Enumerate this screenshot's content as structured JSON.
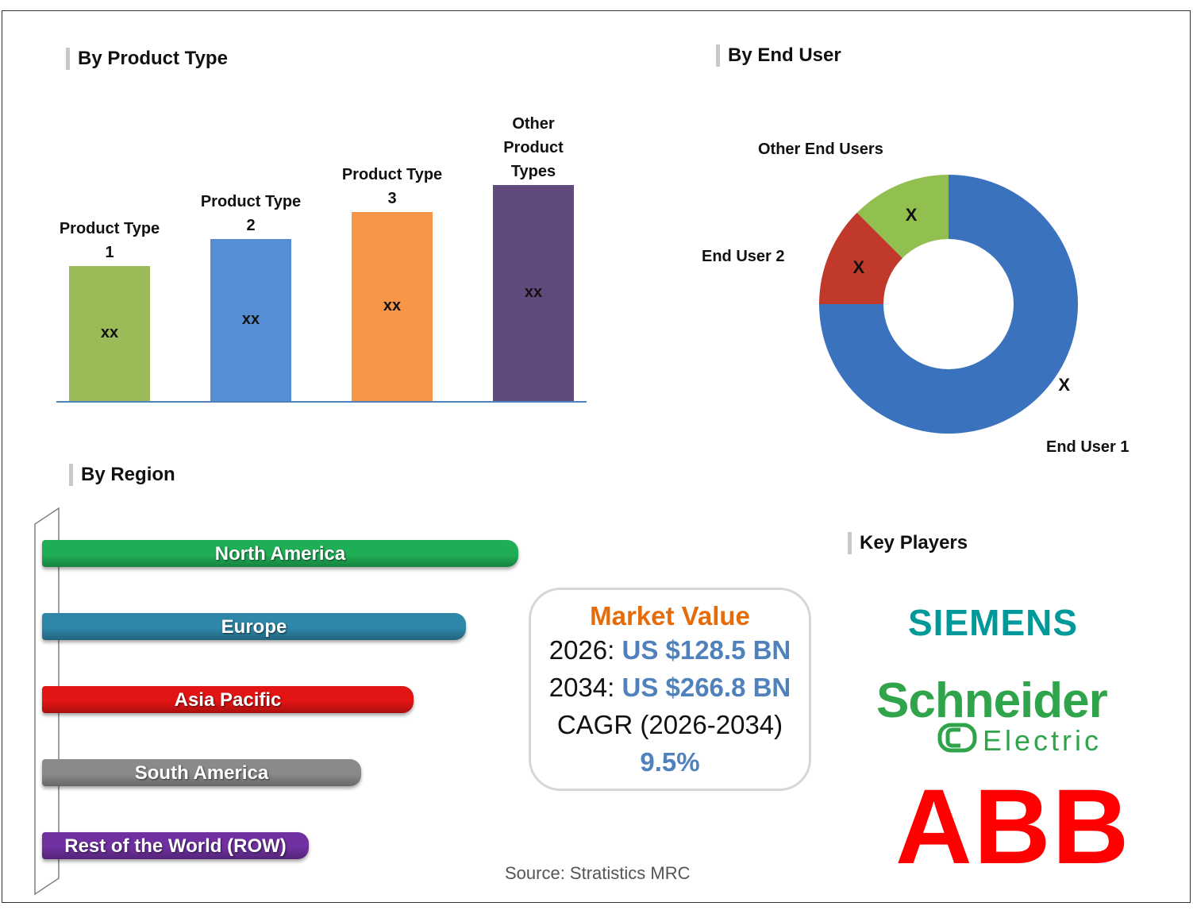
{
  "sections": {
    "product_type": "By Product Type",
    "end_user": "By End User",
    "region": "By Region",
    "key_players": "Key Players"
  },
  "chart_data": [
    {
      "type": "bar",
      "title": "By Product Type",
      "categories": [
        "Product Type 1",
        "Product Type 2",
        "Product Type 3",
        "Other Product Types"
      ],
      "label_lines": [
        [
          "Product Type",
          "1"
        ],
        [
          "Product Type",
          "2"
        ],
        [
          "Product Type",
          "3"
        ],
        [
          "Other",
          "Product",
          "Types"
        ]
      ],
      "values": [
        1,
        1.2,
        1.4,
        1.6
      ],
      "value_labels": [
        "xx",
        "xx",
        "xx",
        "xx"
      ],
      "colors": [
        "#9bbb59",
        "#558ed5",
        "#f79646",
        "#604a7b"
      ]
    },
    {
      "type": "pie",
      "title": "By End User",
      "categories": [
        "End User 1",
        "End User 2",
        "Other End Users"
      ],
      "values": [
        75,
        12.5,
        12.5
      ],
      "value_labels": [
        "X",
        "X",
        "X"
      ],
      "colors": [
        "#3a72bd",
        "#c0392b",
        "#92c050"
      ]
    },
    {
      "type": "bar",
      "title": "By Region",
      "orientation": "horizontal",
      "categories": [
        "North America",
        "Europe",
        "Asia Pacific",
        "South America",
        "Rest of the World (ROW)"
      ],
      "values": [
        100,
        89,
        78,
        67,
        56
      ],
      "colors": [
        "#1fae55",
        "#2e86a8",
        "#e31414",
        "#8a8a8a",
        "#7030a0"
      ]
    }
  ],
  "market_value": {
    "title": "Market Value",
    "line1_year": "2026:",
    "line1_value": "US $128.5 BN",
    "line2_year": "2034:",
    "line2_value": "US $266.8 BN",
    "cagr_label": "CAGR (2026-2034)",
    "cagr_value": "9.5%"
  },
  "key_players": {
    "siemens": "SIEMENS",
    "schneider": "Schneider",
    "electric": "Electric",
    "abb": "ABB"
  },
  "source": "Source: Stratistics MRC"
}
